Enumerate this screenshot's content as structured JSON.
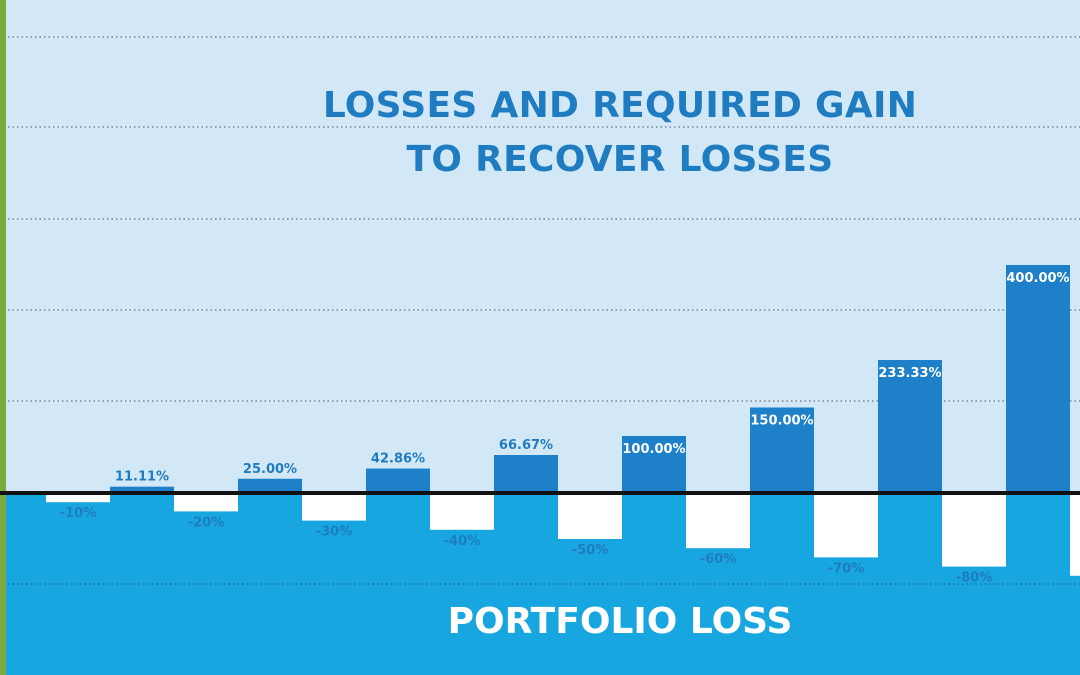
{
  "chart_data": {
    "type": "bar",
    "title": [
      "LOSSES AND REQUIRED GAIN",
      "TO RECOVER LOSSES"
    ],
    "bottom_label": "PORTFOLIO LOSS",
    "series": [
      {
        "values": [
          -10,
          -20,
          -30,
          -40,
          -50,
          -60,
          -70,
          -80,
          -90
        ],
        "labels": [
          "-10%",
          "-20%",
          "-30%",
          "-40%",
          "-50%",
          "-60%",
          "-70%",
          "-80%",
          ""
        ]
      },
      {
        "values": [
          11.11,
          25.0,
          42.86,
          66.67,
          100.0,
          150.0,
          233.33,
          400.0
        ],
        "labels": [
          "11.11%",
          "25.00%",
          "42.86%",
          "66.67%",
          "100.00%",
          "150.00%",
          "233.33%",
          "400.00%"
        ]
      }
    ],
    "grid": true,
    "colors": {
      "background_top": "#d3e8f6",
      "background_bottom": "#17a6df",
      "gain_bar": "#1e80c8",
      "loss_bar": "#ffffff",
      "gain_label": "#ffffff",
      "loss_label": "#1f7cc0",
      "title": "#1f7cc0",
      "bottom_label": "#ffffff",
      "axis": "#111111",
      "left_accent": "#7aaa3a",
      "grid": "#4a5560"
    }
  }
}
